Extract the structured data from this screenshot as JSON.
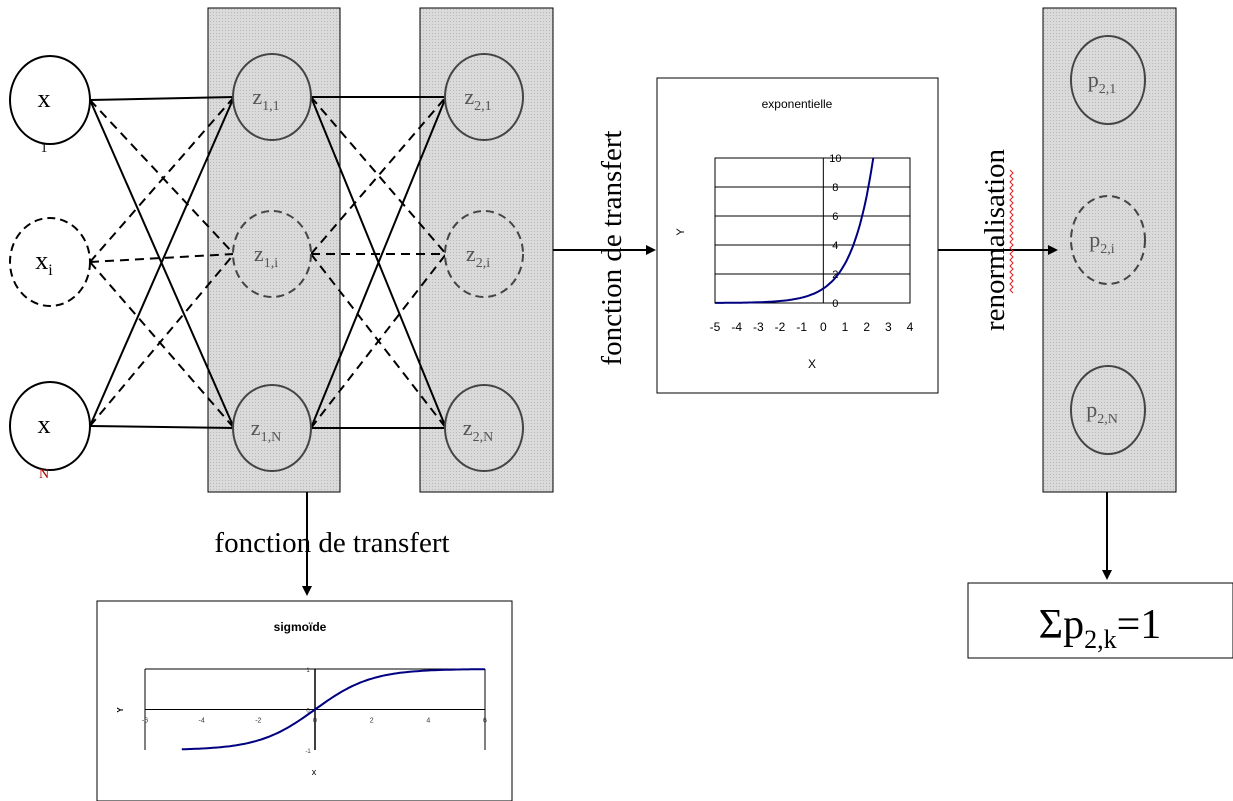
{
  "nodes": {
    "input": [
      {
        "id": "x1",
        "main": "x",
        "sub": "1",
        "dashed": false
      },
      {
        "id": "xi",
        "main": "x",
        "sub": "i",
        "dashed": true
      },
      {
        "id": "xN",
        "main": "x",
        "sub": "N",
        "dashed": false
      }
    ],
    "hidden": [
      {
        "id": "z11",
        "main": "z",
        "sub": "1,1",
        "dashed": false
      },
      {
        "id": "z1i",
        "main": "z",
        "sub": "1,i",
        "dashed": true
      },
      {
        "id": "z1N",
        "main": "z",
        "sub": "1,N",
        "dashed": false
      }
    ],
    "layer2": [
      {
        "id": "z21",
        "main": "z",
        "sub": "2,1",
        "dashed": false
      },
      {
        "id": "z2i",
        "main": "z",
        "sub": "2,i",
        "dashed": true
      },
      {
        "id": "z2N",
        "main": "z",
        "sub": "2,N",
        "dashed": false
      }
    ],
    "output": [
      {
        "id": "p21",
        "main": "p",
        "sub": "2,1",
        "dashed": false
      },
      {
        "id": "p2i",
        "main": "p",
        "sub": "2,i",
        "dashed": true
      },
      {
        "id": "p2N",
        "main": "p",
        "sub": "2,N",
        "dashed": false
      }
    ]
  },
  "labels": {
    "transfer_vertical": "fonction de transfert",
    "transfer_bottom": "fonction de transfert",
    "renormalisation": "renormalisation",
    "sum_main": "Σp",
    "sum_sub": "2,k",
    "sum_rhs": "=1"
  },
  "chart_data": [
    {
      "type": "line",
      "title": "exponentielle",
      "xlabel": "X",
      "ylabel": "Y",
      "xlim": [
        -5,
        4
      ],
      "ylim": [
        0,
        10
      ],
      "xticks": [
        "-5",
        "-4",
        "-3",
        "-2",
        "-1",
        "0",
        "1",
        "2",
        "3",
        "4"
      ],
      "yticks": [
        "0",
        "2",
        "4",
        "6",
        "8",
        "10"
      ],
      "function": "exp",
      "color": "#000080"
    },
    {
      "type": "line",
      "title": "sigmoïde",
      "xlabel": "x",
      "ylabel": "Y",
      "xlim": [
        -6,
        6
      ],
      "ylim": [
        -1,
        1
      ],
      "xticks": [
        "-6",
        "-4",
        "-2",
        "0",
        "2",
        "4",
        "6"
      ],
      "yticks": [
        "-1",
        "0",
        "1"
      ],
      "function": "tanh",
      "color": "#000080"
    }
  ]
}
